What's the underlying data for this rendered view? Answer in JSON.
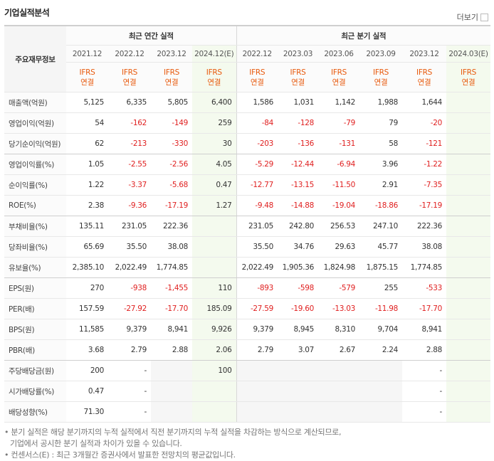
{
  "header": {
    "title": "기업실적분석",
    "more": "더보기"
  },
  "table": {
    "corner": "주요재무정보",
    "groups": [
      {
        "label": "최근 연간 실적",
        "span": 4
      },
      {
        "label": "최근 분기 실적",
        "span": 6
      }
    ],
    "periods": [
      "2021.12",
      "2022.12",
      "2023.12",
      "2024.12(E)",
      "2022.12",
      "2023.03",
      "2023.06",
      "2023.09",
      "2023.12",
      "2024.03(E)"
    ],
    "estimate": [
      false,
      false,
      false,
      true,
      false,
      false,
      false,
      false,
      false,
      true
    ],
    "standards": [
      [
        "IFRS",
        "연결"
      ],
      [
        "IFRS",
        "연결"
      ],
      [
        "IFRS",
        "연결"
      ],
      [
        "IFRS",
        "연결"
      ],
      [
        "IFRS",
        "연결"
      ],
      [
        "IFRS",
        "연결"
      ],
      [
        "IFRS",
        "연결"
      ],
      [
        "IFRS",
        "연결"
      ],
      [
        "IFRS",
        "연결"
      ],
      [
        "IFRS",
        "연결"
      ]
    ],
    "rows": [
      {
        "label": "매출액(억원)",
        "cells": [
          "5,125",
          "6,335",
          "5,805",
          "6,400",
          "1,586",
          "1,031",
          "1,142",
          "1,988",
          "1,644",
          null
        ]
      },
      {
        "label": "영업이익(억원)",
        "cells": [
          "54",
          "-162",
          "-149",
          "259",
          "-84",
          "-128",
          "-79",
          "79",
          "-20",
          null
        ]
      },
      {
        "label": "당기순이익(억원)",
        "cells": [
          "62",
          "-213",
          "-330",
          "30",
          "-203",
          "-136",
          "-131",
          "58",
          "-121",
          null
        ]
      },
      {
        "label": "영업이익률(%)",
        "cells": [
          "1.05",
          "-2.55",
          "-2.56",
          "4.05",
          "-5.29",
          "-12.44",
          "-6.94",
          "3.96",
          "-1.22",
          null
        ]
      },
      {
        "label": "순이익률(%)",
        "cells": [
          "1.22",
          "-3.37",
          "-5.68",
          "0.47",
          "-12.77",
          "-13.15",
          "-11.50",
          "2.91",
          "-7.35",
          null
        ]
      },
      {
        "label": "ROE(%)",
        "cells": [
          "2.38",
          "-9.36",
          "-17.19",
          "1.27",
          "-9.48",
          "-14.88",
          "-19.04",
          "-18.86",
          "-17.19",
          null
        ]
      },
      {
        "label": "부채비율(%)",
        "cells": [
          "135.11",
          "231.05",
          "222.36",
          null,
          "231.05",
          "242.80",
          "256.53",
          "247.10",
          "222.36",
          null
        ]
      },
      {
        "label": "당좌비율(%)",
        "cells": [
          "65.69",
          "35.50",
          "38.08",
          null,
          "35.50",
          "34.76",
          "29.63",
          "45.77",
          "38.08",
          null
        ]
      },
      {
        "label": "유보율(%)",
        "cells": [
          "2,385.10",
          "2,022.49",
          "1,774.85",
          null,
          "2,022.49",
          "1,905.36",
          "1,824.98",
          "1,875.15",
          "1,774.85",
          null
        ]
      },
      {
        "label": "EPS(원)",
        "cells": [
          "270",
          "-938",
          "-1,455",
          "110",
          "-893",
          "-598",
          "-579",
          "255",
          "-533",
          null
        ]
      },
      {
        "label": "PER(배)",
        "cells": [
          "157.59",
          "-27.92",
          "-17.70",
          "185.09",
          "-27.59",
          "-19.60",
          "-13.03",
          "-11.98",
          "-17.70",
          null
        ]
      },
      {
        "label": "BPS(원)",
        "cells": [
          "11,585",
          "9,379",
          "8,941",
          "9,926",
          "9,379",
          "8,945",
          "8,310",
          "9,704",
          "8,941",
          null
        ]
      },
      {
        "label": "PBR(배)",
        "cells": [
          "3.68",
          "2.79",
          "2.88",
          "2.06",
          "2.79",
          "3.07",
          "2.67",
          "2.24",
          "2.88",
          null
        ]
      },
      {
        "label": "주당배당금(원)",
        "cells": [
          "200",
          "-",
          null,
          "100",
          null,
          null,
          null,
          null,
          "-",
          null
        ]
      },
      {
        "label": "시가배당률(%)",
        "cells": [
          "0.47",
          "-",
          null,
          null,
          null,
          null,
          null,
          null,
          "-",
          null
        ]
      },
      {
        "label": "배당성향(%)",
        "cells": [
          "71.30",
          "-",
          null,
          null,
          null,
          null,
          null,
          null,
          "-",
          null
        ]
      }
    ],
    "section_ends": [
      2,
      5,
      8,
      12
    ]
  },
  "notes": [
    [
      "분기 실적은 해당 분기까지의 누적 실적에서 직전 분기까지의 누적 실적을 차감하는 방식으로 계산되므로,",
      "기업에서 공시한 분기 실적과 차이가 있을 수 있습니다."
    ],
    [
      "컨센서스(E) : 최근 3개월간 증권사에서 발표한 전망치의 평균값입니다."
    ]
  ]
}
